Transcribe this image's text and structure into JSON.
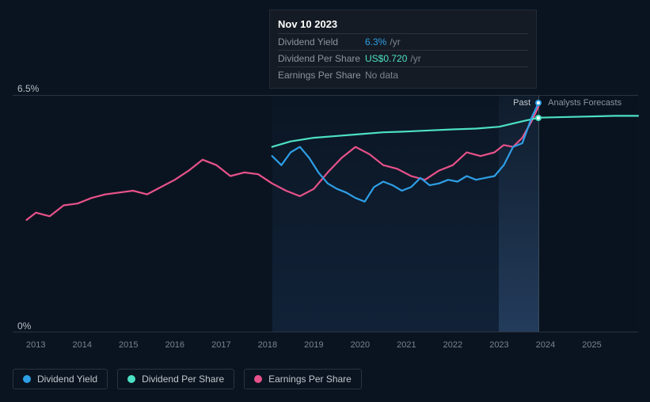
{
  "chart": {
    "background_color": "#0a1420",
    "grid_color": "#2a3440",
    "ylim": [
      0,
      6.5
    ],
    "y_top_label": "6.5%",
    "y_bottom_label": "0%",
    "y_label_fontsize": 12,
    "x_years": [
      2013,
      2014,
      2015,
      2016,
      2017,
      2018,
      2019,
      2020,
      2021,
      2022,
      2023,
      2024,
      2025
    ],
    "x_range": [
      2012.5,
      2026.0
    ],
    "x_tick_fontsize": 11,
    "shade1_start": 2018.1,
    "shade2_start": 2023.0,
    "divider_year": 2023.85,
    "past_label": "Past",
    "forecast_label": "Analysts Forecasts",
    "marker_dot_yield_y": 6.3,
    "marker_dot_dps_y": 5.9,
    "series": {
      "dividend_yield": {
        "color": "#2e9fe6",
        "line_width": 2.2,
        "points": [
          [
            2018.1,
            4.85
          ],
          [
            2018.3,
            4.6
          ],
          [
            2018.5,
            4.95
          ],
          [
            2018.7,
            5.1
          ],
          [
            2018.9,
            4.8
          ],
          [
            2019.1,
            4.4
          ],
          [
            2019.3,
            4.1
          ],
          [
            2019.5,
            3.95
          ],
          [
            2019.7,
            3.85
          ],
          [
            2019.9,
            3.7
          ],
          [
            2020.1,
            3.6
          ],
          [
            2020.3,
            4.0
          ],
          [
            2020.5,
            4.15
          ],
          [
            2020.7,
            4.05
          ],
          [
            2020.9,
            3.9
          ],
          [
            2021.1,
            4.0
          ],
          [
            2021.3,
            4.25
          ],
          [
            2021.5,
            4.05
          ],
          [
            2021.7,
            4.1
          ],
          [
            2021.9,
            4.2
          ],
          [
            2022.1,
            4.15
          ],
          [
            2022.3,
            4.3
          ],
          [
            2022.5,
            4.2
          ],
          [
            2022.7,
            4.25
          ],
          [
            2022.9,
            4.3
          ],
          [
            2023.1,
            4.6
          ],
          [
            2023.3,
            5.1
          ],
          [
            2023.5,
            5.2
          ],
          [
            2023.7,
            5.9
          ],
          [
            2023.85,
            6.3
          ]
        ]
      },
      "dividend_per_share": {
        "color": "#4de0c4",
        "line_width": 2.2,
        "points": [
          [
            2018.1,
            5.1
          ],
          [
            2018.5,
            5.25
          ],
          [
            2019.0,
            5.35
          ],
          [
            2019.5,
            5.4
          ],
          [
            2020.0,
            5.45
          ],
          [
            2020.5,
            5.5
          ],
          [
            2021.0,
            5.52
          ],
          [
            2021.5,
            5.55
          ],
          [
            2022.0,
            5.58
          ],
          [
            2022.5,
            5.6
          ],
          [
            2023.0,
            5.65
          ],
          [
            2023.5,
            5.8
          ],
          [
            2023.85,
            5.9
          ],
          [
            2024.5,
            5.92
          ],
          [
            2025.5,
            5.95
          ],
          [
            2026.0,
            5.95
          ]
        ]
      },
      "earnings_per_share": {
        "color": "#e8528a",
        "line_width": 2.2,
        "points": [
          [
            2012.8,
            3.1
          ],
          [
            2013.0,
            3.3
          ],
          [
            2013.3,
            3.2
          ],
          [
            2013.6,
            3.5
          ],
          [
            2013.9,
            3.55
          ],
          [
            2014.2,
            3.7
          ],
          [
            2014.5,
            3.8
          ],
          [
            2014.8,
            3.85
          ],
          [
            2015.1,
            3.9
          ],
          [
            2015.4,
            3.8
          ],
          [
            2015.7,
            4.0
          ],
          [
            2016.0,
            4.2
          ],
          [
            2016.3,
            4.45
          ],
          [
            2016.6,
            4.75
          ],
          [
            2016.9,
            4.6
          ],
          [
            2017.2,
            4.3
          ],
          [
            2017.5,
            4.4
          ],
          [
            2017.8,
            4.35
          ],
          [
            2018.1,
            4.1
          ],
          [
            2018.4,
            3.9
          ],
          [
            2018.7,
            3.75
          ],
          [
            2019.0,
            3.95
          ],
          [
            2019.3,
            4.4
          ],
          [
            2019.6,
            4.8
          ],
          [
            2019.9,
            5.1
          ],
          [
            2020.2,
            4.9
          ],
          [
            2020.5,
            4.6
          ],
          [
            2020.8,
            4.5
          ],
          [
            2021.1,
            4.3
          ],
          [
            2021.4,
            4.2
          ],
          [
            2021.7,
            4.45
          ],
          [
            2022.0,
            4.6
          ],
          [
            2022.3,
            4.95
          ],
          [
            2022.6,
            4.85
          ],
          [
            2022.9,
            4.95
          ],
          [
            2023.1,
            5.15
          ],
          [
            2023.3,
            5.1
          ],
          [
            2023.5,
            5.35
          ],
          [
            2023.7,
            5.8
          ],
          [
            2023.85,
            6.2
          ]
        ]
      }
    }
  },
  "tooltip": {
    "date": "Nov 10 2023",
    "rows": [
      {
        "label": "Dividend Yield",
        "value": "6.3%",
        "unit": "/yr",
        "color": "#2e9fe6"
      },
      {
        "label": "Dividend Per Share",
        "value": "US$0.720",
        "unit": "/yr",
        "color": "#4de0c4"
      },
      {
        "label": "Earnings Per Share",
        "value": "No data",
        "unit": "",
        "color": "#7a8490"
      }
    ]
  },
  "legend": {
    "items": [
      {
        "label": "Dividend Yield",
        "color": "#2e9fe6"
      },
      {
        "label": "Dividend Per Share",
        "color": "#4de0c4"
      },
      {
        "label": "Earnings Per Share",
        "color": "#e8528a"
      }
    ],
    "border_color": "#2a3440",
    "fontsize": 12
  }
}
